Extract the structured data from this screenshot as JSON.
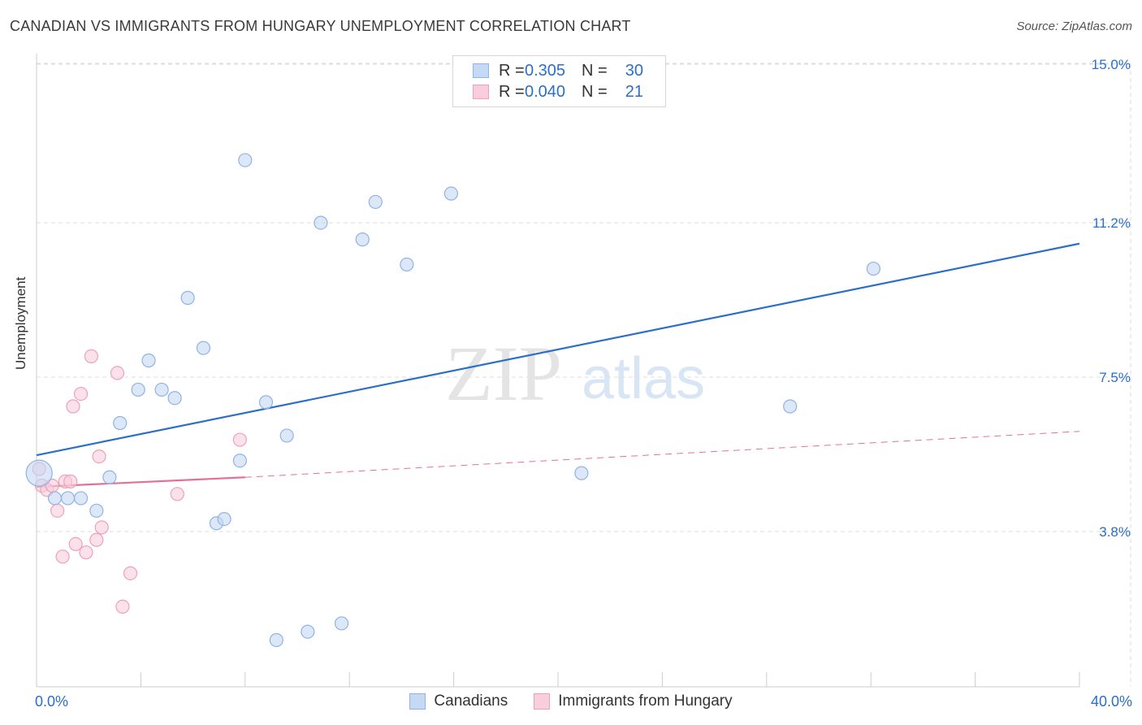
{
  "title": "CANADIAN VS IMMIGRANTS FROM HUNGARY UNEMPLOYMENT CORRELATION CHART",
  "source": "Source: ZipAtlas.com",
  "watermark": {
    "zip": "ZIP",
    "atlas": "atlas"
  },
  "legend_top": [
    {
      "r_label": "R =",
      "r_value": "0.305",
      "n_label": "N =",
      "n_value": "30"
    },
    {
      "r_label": "R =",
      "r_value": "0.040",
      "n_label": "N =",
      "n_value": "21"
    }
  ],
  "colors": {
    "blue_fill": "#c5d9f4",
    "blue_stroke": "#8fb3e4",
    "blue_line": "#2b6fc8",
    "pink_fill": "#f9cddb",
    "pink_stroke": "#eea1b8",
    "pink_line": "#e4709a",
    "grid": "#dddddd",
    "tick_label": "#2a6fc9"
  },
  "chart_data": {
    "type": "scatter",
    "xlabel": "",
    "ylabel": "Unemployment",
    "xlim": [
      0,
      40
    ],
    "ylim": [
      0,
      15.5
    ],
    "x_tick_labels": [
      {
        "value": 0,
        "label": "0.0%"
      },
      {
        "value": 40,
        "label": "40.0%"
      }
    ],
    "y_ticks": [
      {
        "value": 3.8,
        "label": "3.8%"
      },
      {
        "value": 7.5,
        "label": "7.5%"
      },
      {
        "value": 11.2,
        "label": "11.2%"
      },
      {
        "value": 15.0,
        "label": "15.0%"
      }
    ],
    "series": [
      {
        "name": "Canadians",
        "color": "blue",
        "points": [
          [
            0.1,
            5.2
          ],
          [
            0.7,
            4.6
          ],
          [
            1.2,
            4.6
          ],
          [
            1.7,
            4.6
          ],
          [
            2.3,
            4.3
          ],
          [
            2.8,
            5.1
          ],
          [
            3.2,
            6.4
          ],
          [
            3.9,
            7.2
          ],
          [
            4.3,
            7.9
          ],
          [
            4.8,
            7.2
          ],
          [
            5.3,
            7.0
          ],
          [
            5.8,
            9.4
          ],
          [
            6.4,
            8.2
          ],
          [
            6.9,
            4.0
          ],
          [
            7.2,
            4.1
          ],
          [
            7.8,
            5.5
          ],
          [
            8.0,
            12.7
          ],
          [
            8.8,
            6.9
          ],
          [
            9.2,
            1.2
          ],
          [
            9.6,
            6.1
          ],
          [
            10.4,
            1.4
          ],
          [
            10.9,
            11.2
          ],
          [
            11.7,
            1.6
          ],
          [
            12.5,
            10.8
          ],
          [
            13.0,
            11.7
          ],
          [
            14.2,
            10.2
          ],
          [
            15.9,
            11.9
          ],
          [
            20.9,
            5.2
          ],
          [
            32.1,
            10.1
          ],
          [
            28.9,
            6.8
          ]
        ],
        "trend": {
          "x": [
            0,
            40
          ],
          "y": [
            5.63,
            10.7
          ]
        }
      },
      {
        "name": "Immigrants from Hungary",
        "color": "pink",
        "points": [
          [
            0.1,
            5.3
          ],
          [
            0.2,
            4.9
          ],
          [
            0.4,
            4.8
          ],
          [
            0.6,
            4.9
          ],
          [
            0.8,
            4.3
          ],
          [
            1.0,
            3.2
          ],
          [
            1.1,
            5.0
          ],
          [
            1.4,
            6.8
          ],
          [
            1.5,
            3.5
          ],
          [
            1.7,
            7.1
          ],
          [
            1.9,
            3.3
          ],
          [
            2.1,
            8.0
          ],
          [
            2.3,
            3.6
          ],
          [
            2.4,
            5.6
          ],
          [
            2.5,
            3.9
          ],
          [
            3.1,
            7.6
          ],
          [
            3.3,
            2.0
          ],
          [
            3.6,
            2.8
          ],
          [
            5.4,
            4.7
          ],
          [
            7.8,
            6.0
          ],
          [
            1.3,
            5.0
          ]
        ],
        "trend_solid": {
          "x": [
            0,
            8.0
          ],
          "y": [
            4.87,
            5.1
          ]
        },
        "trend_dashed": {
          "x": [
            8.0,
            40
          ],
          "y": [
            5.1,
            6.2
          ]
        }
      }
    ]
  }
}
